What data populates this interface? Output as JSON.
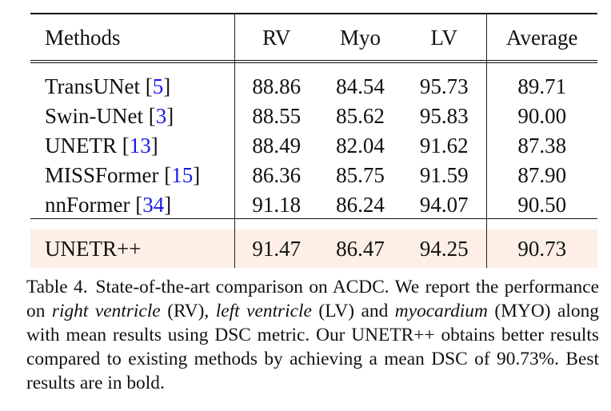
{
  "table": {
    "headers": [
      "Methods",
      "RV",
      "Myo",
      "LV",
      "Average"
    ],
    "rows": [
      {
        "method": "TransUNet",
        "cite": "5",
        "rv": "88.86",
        "myo": "84.54",
        "lv": "95.73",
        "avg": "89.71",
        "bold": []
      },
      {
        "method": "Swin-UNet",
        "cite": "3",
        "rv": "88.55",
        "myo": "85.62",
        "lv": "95.83",
        "avg": "90.00",
        "bold": [
          "lv"
        ]
      },
      {
        "method": "UNETR",
        "cite": "13",
        "rv": "88.49",
        "myo": "82.04",
        "lv": "91.62",
        "avg": "87.38",
        "bold": []
      },
      {
        "method": "MISSFormer",
        "cite": "15",
        "rv": "86.36",
        "myo": "85.75",
        "lv": "91.59",
        "avg": "87.90",
        "bold": []
      },
      {
        "method": "nnFormer",
        "cite": "34",
        "rv": "91.18",
        "myo": "86.24",
        "lv": "94.07",
        "avg": "90.50",
        "bold": []
      }
    ],
    "ours": {
      "method": "UNETR++",
      "rv": "91.47",
      "myo": "86.47",
      "lv": "94.25",
      "avg": "90.73",
      "bold": [
        "rv",
        "myo",
        "avg"
      ]
    },
    "ours_highlight_color": "#fdefe5",
    "citation_color": "#1a1ae6"
  },
  "caption": {
    "label": "Table 4.",
    "t1": "State-of-the-art comparison on ACDC. We report the performance on ",
    "i1": "right ventricle",
    "t2": " (RV), ",
    "i2": "left ventricle",
    "t3": " (LV) and ",
    "i3": "myocardium",
    "t4": " (MYO) along with mean results using DSC metric. Our UNETR++ obtains better results compared to existing methods by achieving a mean DSC of 90.73%. Best results are in bold."
  }
}
